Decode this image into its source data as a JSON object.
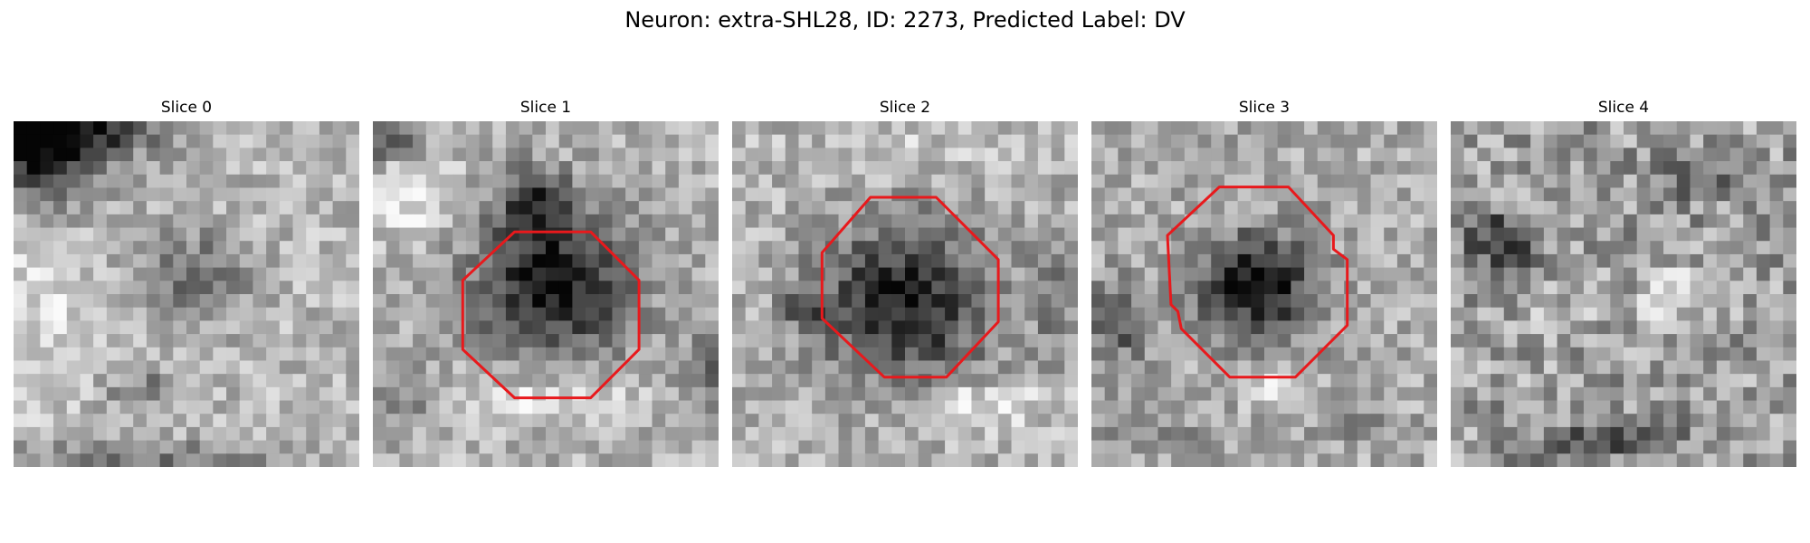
{
  "figure": {
    "title": "Neuron: extra-SHL28, ID: 2273, Predicted Label: DV"
  },
  "panels": [
    {
      "title": "Slice 0",
      "has_outline": false
    },
    {
      "title": "Slice 1",
      "has_outline": true
    },
    {
      "title": "Slice 2",
      "has_outline": true
    },
    {
      "title": "Slice 3",
      "has_outline": true
    },
    {
      "title": "Slice 4",
      "has_outline": false
    }
  ],
  "colors": {
    "outline": "#e8191c",
    "background": "#ffffff"
  },
  "colormap": "grayscale"
}
